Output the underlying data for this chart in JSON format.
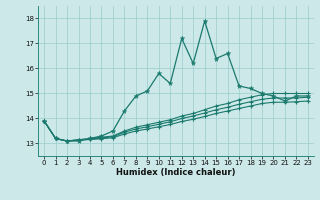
{
  "xlabel": "Humidex (Indice chaleur)",
  "bg_color": "#cce8e8",
  "grid_color": "#99cccc",
  "line_color": "#1a7a6e",
  "xlim": [
    -0.5,
    23.5
  ],
  "ylim": [
    12.5,
    18.5
  ],
  "yticks": [
    13,
    14,
    15,
    16,
    17,
    18
  ],
  "xticks": [
    0,
    1,
    2,
    3,
    4,
    5,
    6,
    7,
    8,
    9,
    10,
    11,
    12,
    13,
    14,
    15,
    16,
    17,
    18,
    19,
    20,
    21,
    22,
    23
  ],
  "series1_x": [
    0,
    1,
    2,
    3,
    4,
    5,
    6,
    7,
    8,
    9,
    10,
    11,
    12,
    13,
    14,
    15,
    16,
    17,
    18,
    19,
    20,
    21,
    22,
    23
  ],
  "series1_y": [
    13.9,
    13.2,
    13.1,
    13.1,
    13.2,
    13.3,
    13.5,
    14.3,
    14.9,
    15.1,
    15.8,
    15.4,
    17.2,
    16.2,
    17.9,
    16.4,
    16.6,
    15.3,
    15.2,
    15.0,
    14.9,
    14.7,
    14.9,
    14.9
  ],
  "series2_x": [
    0,
    1,
    2,
    3,
    4,
    5,
    6,
    7,
    8,
    9,
    10,
    11,
    12,
    13,
    14,
    15,
    16,
    17,
    18,
    19,
    20,
    21,
    22,
    23
  ],
  "series2_y": [
    13.9,
    13.2,
    13.1,
    13.15,
    13.2,
    13.25,
    13.3,
    13.5,
    13.65,
    13.75,
    13.85,
    13.95,
    14.1,
    14.2,
    14.35,
    14.5,
    14.6,
    14.75,
    14.85,
    14.95,
    15.0,
    15.0,
    15.0,
    15.0
  ],
  "series3_x": [
    0,
    1,
    2,
    3,
    4,
    5,
    6,
    7,
    8,
    9,
    10,
    11,
    12,
    13,
    14,
    15,
    16,
    17,
    18,
    19,
    20,
    21,
    22,
    23
  ],
  "series3_y": [
    13.9,
    13.2,
    13.1,
    13.15,
    13.18,
    13.22,
    13.27,
    13.45,
    13.58,
    13.67,
    13.77,
    13.87,
    14.0,
    14.1,
    14.22,
    14.35,
    14.45,
    14.57,
    14.67,
    14.77,
    14.82,
    14.82,
    14.82,
    14.85
  ],
  "series4_x": [
    0,
    1,
    2,
    3,
    4,
    5,
    6,
    7,
    8,
    9,
    10,
    11,
    12,
    13,
    14,
    15,
    16,
    17,
    18,
    19,
    20,
    21,
    22,
    23
  ],
  "series4_y": [
    13.9,
    13.2,
    13.1,
    13.13,
    13.16,
    13.19,
    13.23,
    13.38,
    13.5,
    13.58,
    13.67,
    13.76,
    13.88,
    13.97,
    14.08,
    14.2,
    14.3,
    14.4,
    14.5,
    14.6,
    14.65,
    14.65,
    14.67,
    14.7
  ]
}
